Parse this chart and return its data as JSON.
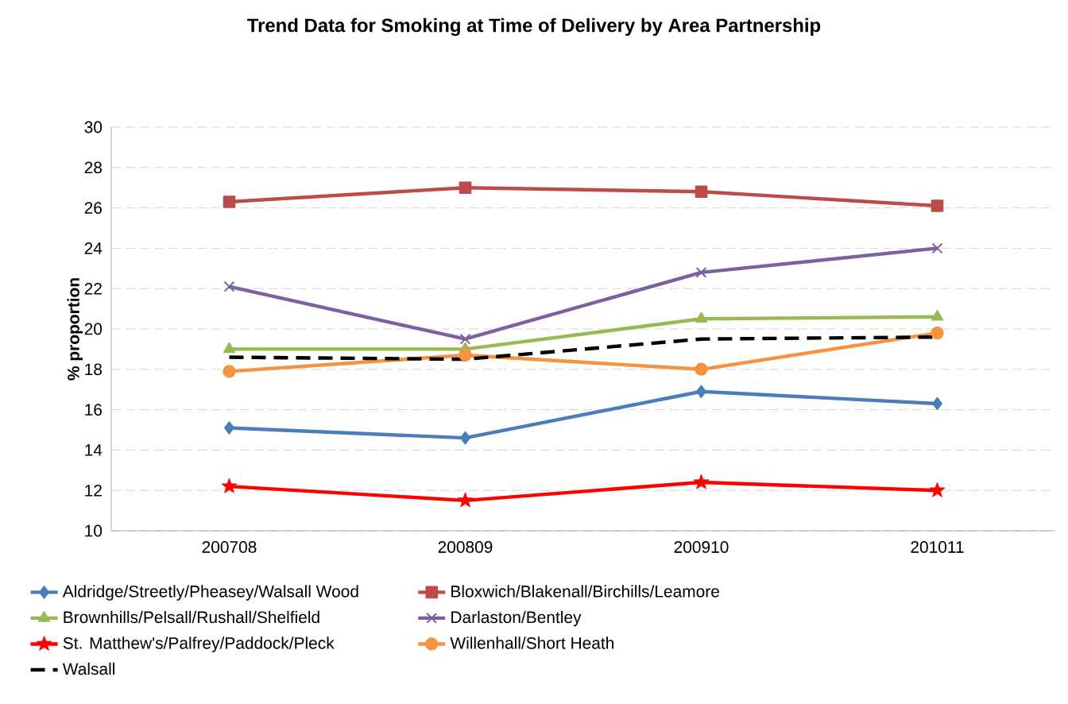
{
  "chart_data": {
    "type": "line",
    "title": "Trend Data for Smoking at Time of Delivery by Area Partnership",
    "ylabel": "% proportion",
    "categories": [
      "200708",
      "200809",
      "200910",
      "201011"
    ],
    "series": [
      {
        "name": "Aldridge/Streetly/Pheasey/Walsall Wood",
        "color": "#4a7ebb",
        "marker": "diamond",
        "values": [
          15.1,
          14.6,
          16.9,
          16.3
        ]
      },
      {
        "name": "Bloxwich/Blakenall/Birchills/Leamore",
        "color": "#be4b48",
        "marker": "square",
        "values": [
          26.3,
          27.0,
          26.8,
          26.1
        ]
      },
      {
        "name": "Brownhills/Pelsall/Rushall/Shelfield",
        "color": "#98b954",
        "marker": "triangle",
        "values": [
          19.0,
          19.0,
          20.5,
          20.6
        ]
      },
      {
        "name": "Darlaston/Bentley",
        "color": "#7d60a0",
        "marker": "cross",
        "values": [
          22.1,
          19.5,
          22.8,
          24.0
        ]
      },
      {
        "name": "St. Matthew's/Palfrey/Paddock/Pleck",
        "color": "#ff0000",
        "marker": "star",
        "values": [
          12.2,
          11.5,
          12.4,
          12.0
        ]
      },
      {
        "name": "Willenhall/Short Heath",
        "color": "#f69240",
        "marker": "circle",
        "values": [
          17.9,
          18.7,
          18.0,
          19.8
        ]
      },
      {
        "name": "Walsall",
        "color": "#000000",
        "marker": "none",
        "line_style": "dashed",
        "values": [
          18.6,
          18.5,
          19.5,
          19.6
        ]
      }
    ],
    "ylim": [
      10,
      30
    ],
    "yticks": [
      10,
      12,
      14,
      16,
      18,
      20,
      22,
      24,
      26,
      28,
      30
    ],
    "grid": "y",
    "legend": "bottom"
  }
}
